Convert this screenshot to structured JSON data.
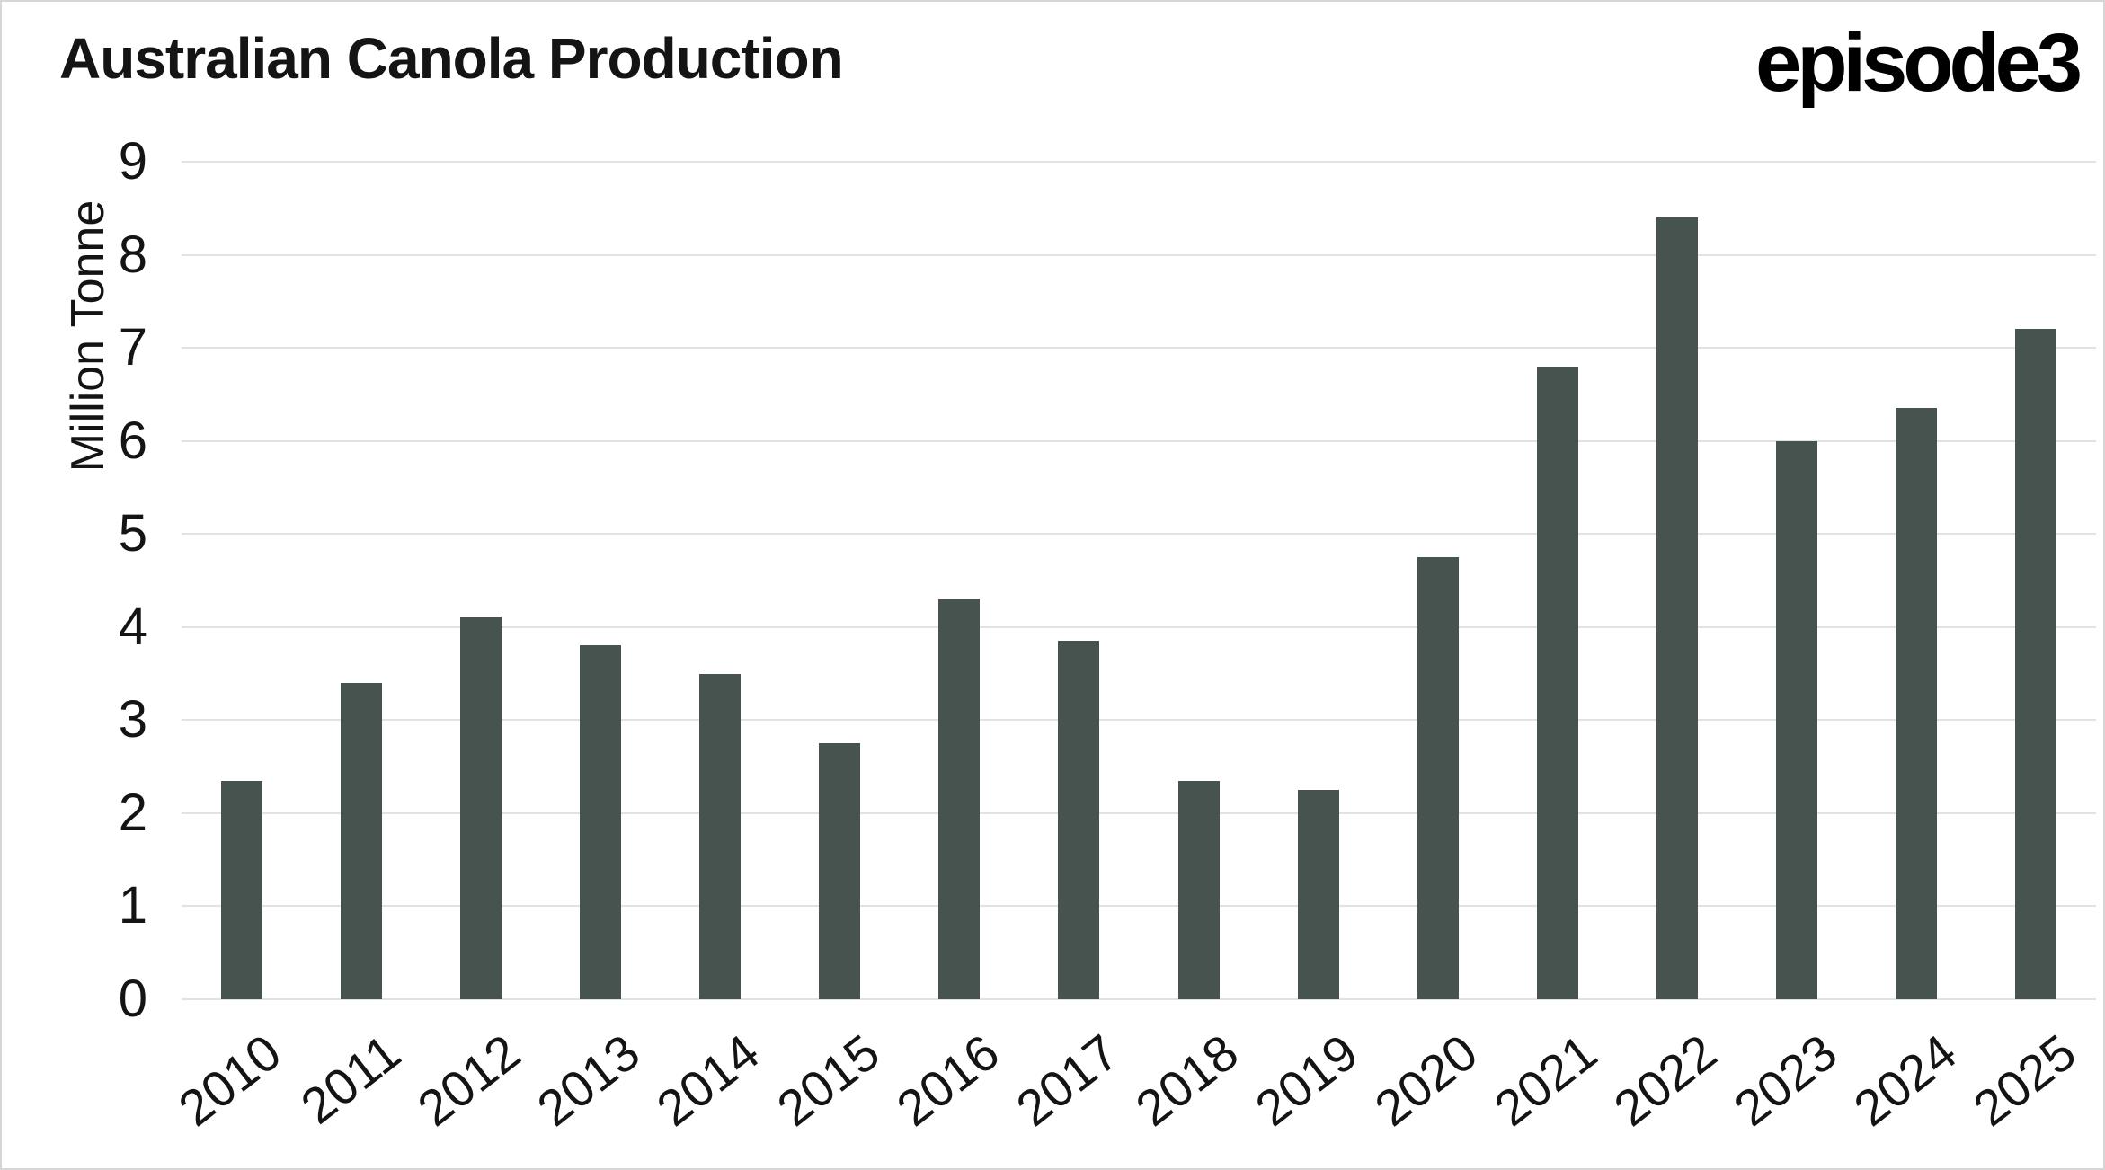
{
  "brand": {
    "logo_text": "episode3"
  },
  "chart_data": {
    "type": "bar",
    "title": "Australian Canola Production",
    "ylabel": "Million Tonne",
    "xlabel": "",
    "categories": [
      "2010",
      "2011",
      "2012",
      "2013",
      "2014",
      "2015",
      "2016",
      "2017",
      "2018",
      "2019",
      "2020",
      "2021",
      "2022",
      "2023",
      "2024",
      "2025"
    ],
    "values": [
      2.35,
      3.4,
      4.1,
      3.8,
      3.5,
      2.75,
      4.3,
      3.85,
      2.35,
      2.25,
      4.75,
      6.8,
      8.4,
      6.0,
      6.35,
      7.2
    ],
    "ylim": [
      0,
      9
    ],
    "ytick_step": 1,
    "yticks": [
      "0",
      "1",
      "2",
      "3",
      "4",
      "5",
      "6",
      "7",
      "8",
      "9"
    ],
    "grid": "horizontal",
    "legend": "none",
    "bar_color": "#46534e",
    "gridline_color": "#e2e2e2",
    "text_color": "#141414"
  }
}
